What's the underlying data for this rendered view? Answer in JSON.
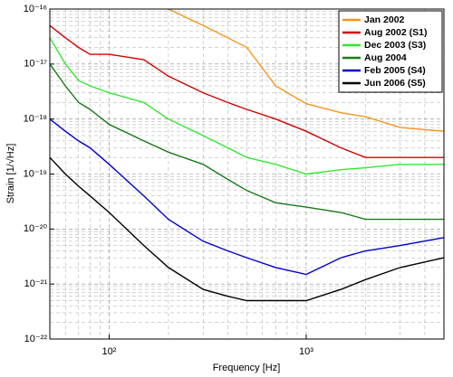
{
  "chart_data": {
    "type": "line",
    "x_label": "Frequency [Hz]",
    "y_label": "Strain [1/√Hz]",
    "xscale": "log",
    "yscale": "log",
    "grid": true,
    "legend": "upper right",
    "xlim": [
      50,
      5000
    ],
    "ylim": [
      1e-22,
      1e-16
    ],
    "xticks": [
      {
        "value": 100,
        "label": "10²"
      },
      {
        "value": 1000,
        "label": "10³"
      }
    ],
    "yticks": [
      {
        "value": 1e-22,
        "label": "10⁻²²"
      },
      {
        "value": 1e-21,
        "label": "10⁻²¹"
      },
      {
        "value": 1e-20,
        "label": "10⁻²⁰"
      },
      {
        "value": 1e-19,
        "label": "10⁻¹⁹"
      },
      {
        "value": 1e-18,
        "label": "10⁻¹⁸"
      },
      {
        "value": 1e-17,
        "label": "10⁻¹⁷"
      },
      {
        "value": 1e-16,
        "label": "10⁻¹⁶"
      }
    ],
    "x": [
      50,
      60,
      70,
      80,
      100,
      150,
      200,
      300,
      400,
      500,
      700,
      1000,
      1500,
      2000,
      3000,
      5000
    ],
    "series": [
      {
        "name": "Jan 2002",
        "color": "#f7941d",
        "values": [
          null,
          null,
          null,
          null,
          null,
          null,
          1e-16,
          5e-17,
          3e-17,
          2e-17,
          4e-18,
          1.9e-18,
          1.3e-18,
          1.1e-18,
          7e-19,
          6e-19
        ]
      },
      {
        "name": "Aug 2002 (S1)",
        "color": "#d40000",
        "values": [
          5e-17,
          3e-17,
          2e-17,
          1.5e-17,
          1.5e-17,
          1.2e-17,
          6e-18,
          3e-18,
          2e-18,
          1.5e-18,
          1e-18,
          6e-19,
          3e-19,
          2e-19,
          2e-19,
          2e-19
        ]
      },
      {
        "name": "Dec 2003 (S3)",
        "color": "#33e633",
        "values": [
          3e-17,
          1e-17,
          5e-18,
          4e-18,
          3e-18,
          2e-18,
          1e-18,
          5e-19,
          3e-19,
          2e-19,
          1.5e-19,
          1e-19,
          1.2e-19,
          1.3e-19,
          1.5e-19,
          1.5e-19
        ]
      },
      {
        "name": "Aug 2004",
        "color": "#1a7a1a",
        "values": [
          1e-17,
          4e-18,
          2e-18,
          1.5e-18,
          8e-19,
          4e-19,
          2.5e-19,
          1.5e-19,
          8e-20,
          5e-20,
          3e-20,
          2.5e-20,
          2e-20,
          1.5e-20,
          1.5e-20,
          1.5e-20
        ]
      },
      {
        "name": "Feb 2005 (S4)",
        "color": "#0000cc",
        "values": [
          1e-18,
          6e-19,
          4e-19,
          3e-19,
          1.5e-19,
          4e-20,
          1.5e-20,
          6e-21,
          4e-21,
          3e-21,
          2e-21,
          1.5e-21,
          3e-21,
          4e-21,
          5e-21,
          7e-21
        ]
      },
      {
        "name": "Jun 2006 (S5)",
        "color": "#000000",
        "values": [
          2e-19,
          1e-19,
          6e-20,
          4e-20,
          2e-20,
          5e-21,
          2e-21,
          8e-22,
          6e-22,
          5e-22,
          5e-22,
          5e-22,
          8e-22,
          1.2e-21,
          2e-21,
          3e-21
        ]
      }
    ]
  }
}
